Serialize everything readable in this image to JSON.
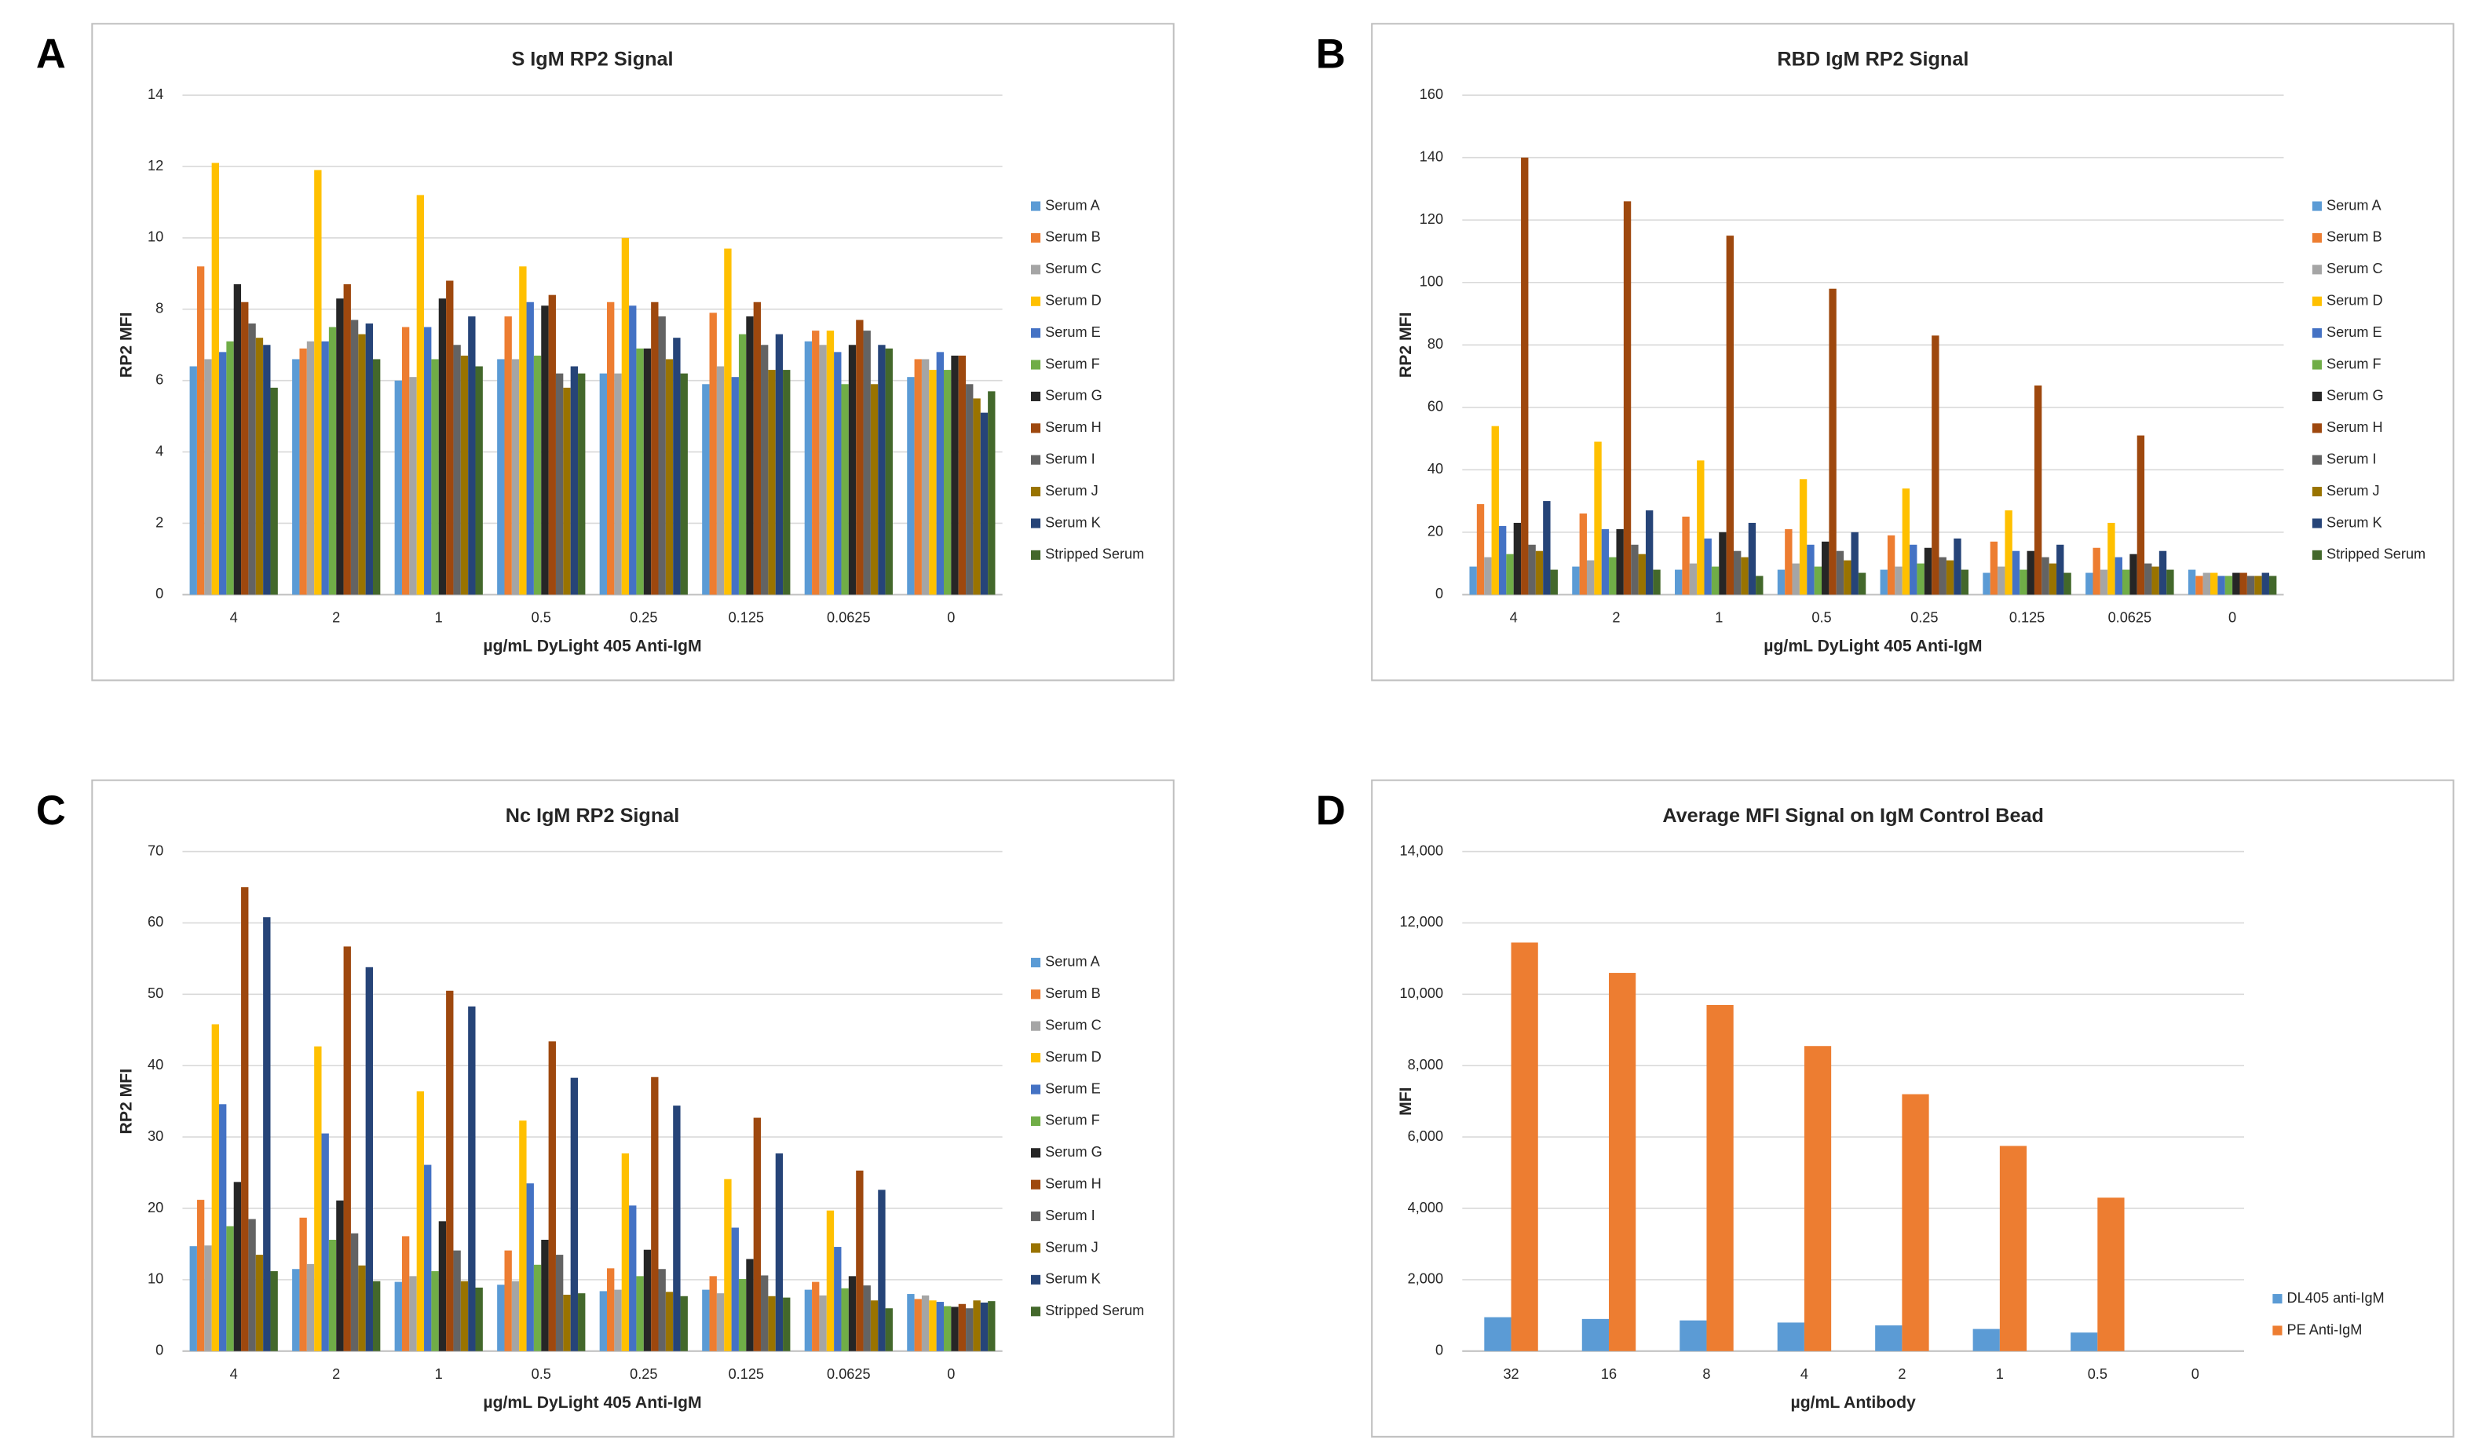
{
  "chart_data": [
    {
      "type": "bar",
      "label": "A",
      "title": "S IgM RP2 Signal",
      "x_label": "µg/mL DyLight 405 Anti-IgM",
      "y_label": "RP2 MFI",
      "categories": [
        "4",
        "2",
        "1",
        "0.5",
        "0.25",
        "0.125",
        "0.0625",
        "0"
      ],
      "ylim": [
        0,
        14
      ],
      "yticks": [
        0,
        2,
        4,
        6,
        8,
        10,
        12,
        14
      ],
      "grid": true,
      "legend": "right",
      "series": [
        {
          "name": "Serum A",
          "color": "#5b9bd5",
          "values": [
            6.4,
            6.6,
            6.0,
            6.6,
            6.2,
            5.9,
            7.1,
            6.1
          ]
        },
        {
          "name": "Serum B",
          "color": "#ed7d31",
          "values": [
            9.2,
            6.9,
            7.5,
            7.8,
            8.2,
            7.9,
            7.4,
            6.6
          ]
        },
        {
          "name": "Serum C",
          "color": "#a5a5a5",
          "values": [
            6.6,
            7.1,
            6.1,
            6.6,
            6.2,
            6.4,
            7.0,
            6.6
          ]
        },
        {
          "name": "Serum D",
          "color": "#ffc000",
          "values": [
            12.1,
            11.9,
            11.2,
            9.2,
            10.0,
            9.7,
            7.4,
            6.3
          ]
        },
        {
          "name": "Serum E",
          "color": "#4472c4",
          "values": [
            6.8,
            7.1,
            7.5,
            8.2,
            8.1,
            6.1,
            6.8,
            6.8
          ]
        },
        {
          "name": "Serum F",
          "color": "#70ad47",
          "values": [
            7.1,
            7.5,
            6.6,
            6.7,
            6.9,
            7.3,
            5.9,
            6.3
          ]
        },
        {
          "name": "Serum G",
          "color": "#262626",
          "values": [
            8.7,
            8.3,
            8.3,
            8.1,
            6.9,
            7.8,
            7.0,
            6.7
          ]
        },
        {
          "name": "Serum H",
          "color": "#9e480e",
          "values": [
            8.2,
            8.7,
            8.8,
            8.4,
            8.2,
            8.2,
            7.7,
            6.7
          ]
        },
        {
          "name": "Serum I",
          "color": "#636363",
          "values": [
            7.6,
            7.7,
            7.0,
            6.2,
            7.8,
            7.0,
            7.4,
            5.9
          ]
        },
        {
          "name": "Serum J",
          "color": "#997300",
          "values": [
            7.2,
            7.3,
            6.7,
            5.8,
            6.6,
            6.3,
            5.9,
            5.5
          ]
        },
        {
          "name": "Serum K",
          "color": "#264478",
          "values": [
            7.0,
            7.6,
            7.8,
            6.4,
            7.2,
            7.3,
            7.0,
            5.1
          ]
        },
        {
          "name": "Stripped Serum",
          "color": "#43682b",
          "values": [
            5.8,
            6.6,
            6.4,
            6.2,
            6.2,
            6.3,
            6.9,
            5.7
          ]
        }
      ]
    },
    {
      "type": "bar",
      "label": "B",
      "title": "RBD IgM RP2 Signal",
      "x_label": "µg/mL DyLight 405 Anti-IgM",
      "y_label": "RP2 MFI",
      "categories": [
        "4",
        "2",
        "1",
        "0.5",
        "0.25",
        "0.125",
        "0.0625",
        "0"
      ],
      "ylim": [
        0,
        160
      ],
      "yticks": [
        0,
        20,
        40,
        60,
        80,
        100,
        120,
        140,
        160
      ],
      "grid": true,
      "legend": "right",
      "series": [
        {
          "name": "Serum A",
          "color": "#5b9bd5",
          "values": [
            9,
            9,
            8,
            8,
            8,
            7,
            7,
            8
          ]
        },
        {
          "name": "Serum B",
          "color": "#ed7d31",
          "values": [
            29,
            26,
            25,
            21,
            19,
            17,
            15,
            6
          ]
        },
        {
          "name": "Serum C",
          "color": "#a5a5a5",
          "values": [
            12,
            11,
            10,
            10,
            9,
            9,
            8,
            7
          ]
        },
        {
          "name": "Serum D",
          "color": "#ffc000",
          "values": [
            54,
            49,
            43,
            37,
            34,
            27,
            23,
            7
          ]
        },
        {
          "name": "Serum E",
          "color": "#4472c4",
          "values": [
            22,
            21,
            18,
            16,
            16,
            14,
            12,
            6
          ]
        },
        {
          "name": "Serum F",
          "color": "#70ad47",
          "values": [
            13,
            12,
            9,
            9,
            10,
            8,
            8,
            6
          ]
        },
        {
          "name": "Serum G",
          "color": "#262626",
          "values": [
            23,
            21,
            20,
            17,
            15,
            14,
            13,
            7
          ]
        },
        {
          "name": "Serum H",
          "color": "#9e480e",
          "values": [
            140,
            126,
            115,
            98,
            83,
            67,
            51,
            7
          ]
        },
        {
          "name": "Serum I",
          "color": "#636363",
          "values": [
            16,
            16,
            14,
            14,
            12,
            12,
            10,
            6
          ]
        },
        {
          "name": "Serum J",
          "color": "#997300",
          "values": [
            14,
            13,
            12,
            11,
            11,
            10,
            9,
            6
          ]
        },
        {
          "name": "Serum K",
          "color": "#264478",
          "values": [
            30,
            27,
            23,
            20,
            18,
            16,
            14,
            7
          ]
        },
        {
          "name": "Stripped Serum",
          "color": "#43682b",
          "values": [
            8,
            8,
            6,
            7,
            8,
            7,
            8,
            6
          ]
        }
      ]
    },
    {
      "type": "bar",
      "label": "C",
      "title": "Nc IgM RP2 Signal",
      "x_label": "µg/mL DyLight 405 Anti-IgM",
      "y_label": "RP2 MFI",
      "categories": [
        "4",
        "2",
        "1",
        "0.5",
        "0.25",
        "0.125",
        "0.0625",
        "0"
      ],
      "ylim": [
        0,
        70
      ],
      "yticks": [
        0,
        10,
        20,
        30,
        40,
        50,
        60,
        70
      ],
      "grid": true,
      "legend": "right",
      "series": [
        {
          "name": "Serum A",
          "color": "#5b9bd5",
          "values": [
            14.7,
            11.5,
            9.7,
            9.3,
            8.4,
            8.6,
            8.6,
            8.0
          ]
        },
        {
          "name": "Serum B",
          "color": "#ed7d31",
          "values": [
            21.2,
            18.7,
            16.1,
            14.1,
            11.6,
            10.5,
            9.7,
            7.3
          ]
        },
        {
          "name": "Serum C",
          "color": "#a5a5a5",
          "values": [
            14.8,
            12.2,
            10.5,
            9.8,
            8.6,
            8.1,
            7.8,
            7.8
          ]
        },
        {
          "name": "Serum D",
          "color": "#ffc000",
          "values": [
            45.8,
            42.7,
            36.4,
            32.3,
            27.7,
            24.1,
            19.7,
            7.1
          ]
        },
        {
          "name": "Serum E",
          "color": "#4472c4",
          "values": [
            34.6,
            30.5,
            26.1,
            23.5,
            20.4,
            17.3,
            14.6,
            6.9
          ]
        },
        {
          "name": "Serum F",
          "color": "#70ad47",
          "values": [
            17.5,
            15.6,
            11.2,
            12.1,
            10.5,
            10.1,
            8.8,
            6.3
          ]
        },
        {
          "name": "Serum G",
          "color": "#262626",
          "values": [
            23.7,
            21.1,
            18.2,
            15.6,
            14.2,
            12.9,
            10.5,
            6.2
          ]
        },
        {
          "name": "Serum H",
          "color": "#9e480e",
          "values": [
            65.0,
            56.7,
            50.5,
            43.4,
            38.4,
            32.7,
            25.3,
            6.6
          ]
        },
        {
          "name": "Serum I",
          "color": "#636363",
          "values": [
            18.5,
            16.5,
            14.1,
            13.5,
            11.5,
            10.6,
            9.2,
            6.0
          ]
        },
        {
          "name": "Serum J",
          "color": "#997300",
          "values": [
            13.5,
            12.0,
            9.8,
            7.9,
            8.3,
            7.7,
            7.1,
            7.1
          ]
        },
        {
          "name": "Serum K",
          "color": "#264478",
          "values": [
            60.8,
            53.8,
            48.3,
            38.3,
            34.4,
            27.7,
            22.6,
            6.8
          ]
        },
        {
          "name": "Stripped Serum",
          "color": "#43682b",
          "values": [
            11.2,
            9.8,
            8.9,
            8.1,
            7.7,
            7.5,
            6.0,
            7.0
          ]
        }
      ]
    },
    {
      "type": "bar",
      "label": "D",
      "title": "Average MFI Signal on IgM Control Bead",
      "x_label": "µg/mL Antibody",
      "y_label": "MFI",
      "categories": [
        "32",
        "16",
        "8",
        "4",
        "2",
        "1",
        "0.5",
        "0"
      ],
      "ylim": [
        0,
        14000
      ],
      "yticks": [
        0,
        {
          "value": 2000,
          "label": "2,000"
        },
        {
          "value": 4000,
          "label": "4,000"
        },
        {
          "value": 6000,
          "label": "6,000"
        },
        {
          "value": 8000,
          "label": "8,000"
        },
        {
          "value": 10000,
          "label": "10,000"
        },
        {
          "value": 12000,
          "label": "12,000"
        },
        {
          "value": 14000,
          "label": "14,000"
        }
      ],
      "grid": true,
      "legend": "right",
      "series": [
        {
          "name": "DL405 anti-IgM",
          "color": "#5b9bd5",
          "values": [
            950,
            900,
            860,
            800,
            720,
            620,
            520,
            0
          ]
        },
        {
          "name": "PE Anti-IgM",
          "color": "#ed7d31",
          "values": [
            11450,
            10600,
            9700,
            8550,
            7200,
            5750,
            4300,
            0
          ]
        }
      ]
    }
  ]
}
